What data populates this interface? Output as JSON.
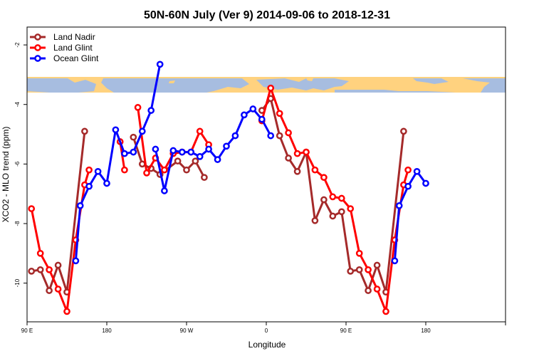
{
  "chart_data": {
    "type": "line",
    "title": "50N-60N July (Ver 9)   2014-09-06 to 2018-12-31",
    "xlabel": "Longitude",
    "ylabel": "XCO2 - MLO trend (ppm)",
    "xlim": [
      -90,
      180
    ],
    "ylim": [
      -11.3,
      -1.4
    ],
    "x_ticks": [
      {
        "value": -90,
        "label": "90 E"
      },
      {
        "value": -45,
        "label": "180"
      },
      {
        "value": 0,
        "label": "90 W"
      },
      {
        "value": 45,
        "label": "0"
      },
      {
        "value": 90,
        "label": "90 E"
      },
      {
        "value": 135,
        "label": "180"
      }
    ],
    "y_ticks": [
      -2,
      -4,
      -6,
      -8,
      -10
    ],
    "legend_position": "top-left",
    "series": [
      {
        "name": "Land Nadir",
        "color": "#A52A2A",
        "segments": [
          [
            [
              -87.5,
              -9.6
            ],
            [
              -82.5,
              -9.55
            ],
            [
              -77.5,
              -10.25
            ],
            [
              -72.5,
              -9.4
            ],
            [
              -67.5,
              -10.3
            ],
            [
              -57.5,
              -4.9
            ]
          ],
          [
            [
              -30,
              -5.1
            ],
            [
              -25,
              -6
            ],
            [
              -20,
              -6.15
            ],
            [
              -15,
              -6.35
            ],
            [
              -5,
              -5.9
            ],
            [
              0,
              -6.2
            ],
            [
              5,
              -5.9
            ],
            [
              10,
              -6.45
            ]
          ],
          [
            [
              42.5,
              -4.2
            ],
            [
              47.5,
              -3.8
            ],
            [
              52.5,
              -5.05
            ],
            [
              57.5,
              -5.8
            ],
            [
              62.5,
              -6.25
            ],
            [
              67.5,
              -5.6
            ],
            [
              72.5,
              -7.9
            ],
            [
              77.5,
              -7.2
            ],
            [
              82.5,
              -7.75
            ],
            [
              87.5,
              -7.6
            ],
            [
              92.5,
              -9.6
            ],
            [
              97.5,
              -9.55
            ],
            [
              102.5,
              -10.25
            ],
            [
              107.5,
              -9.4
            ],
            [
              112.5,
              -10.3
            ],
            [
              122.5,
              -4.9
            ]
          ]
        ]
      },
      {
        "name": "Land Glint",
        "color": "#FF0000",
        "segments": [
          [
            [
              -87.5,
              -7.5
            ],
            [
              -82.5,
              -9
            ],
            [
              -77.5,
              -9.55
            ],
            [
              -72.5,
              -10.2
            ],
            [
              -67.5,
              -10.95
            ],
            [
              -62.5,
              -8.55
            ],
            [
              -57.5,
              -6.7
            ],
            [
              -55,
              -6.2
            ]
          ],
          [
            [
              -37.5,
              -5.25
            ],
            [
              -35,
              -6.2
            ]
          ],
          [
            [
              -27.5,
              -4.1
            ],
            [
              -22.5,
              -6.3
            ],
            [
              -17.5,
              -5.8
            ],
            [
              -12.5,
              -6.2
            ],
            [
              -7.5,
              -5.65
            ],
            [
              -2.5,
              -5.6
            ],
            [
              2.5,
              -5.6
            ],
            [
              7.5,
              -4.9
            ],
            [
              12.5,
              -5.35
            ]
          ],
          [
            [
              42.5,
              -4.55
            ],
            [
              47.5,
              -3.45
            ],
            [
              52.5,
              -4.3
            ],
            [
              57.5,
              -4.95
            ],
            [
              62.5,
              -5.65
            ],
            [
              67.5,
              -5.6
            ],
            [
              72.5,
              -6.2
            ],
            [
              77.5,
              -6.45
            ],
            [
              82.5,
              -7.1
            ],
            [
              87.5,
              -7.15
            ],
            [
              92.5,
              -7.5
            ],
            [
              97.5,
              -9
            ],
            [
              102.5,
              -9.55
            ],
            [
              107.5,
              -10.2
            ],
            [
              112.5,
              -10.95
            ],
            [
              117.5,
              -8.55
            ],
            [
              122.5,
              -6.7
            ],
            [
              125,
              -6.2
            ]
          ]
        ]
      },
      {
        "name": "Ocean Glint",
        "color": "#0000FF",
        "segments": [
          [
            [
              -62.5,
              -9.25
            ],
            [
              -60,
              -7.4
            ],
            [
              -55,
              -6.75
            ],
            [
              -50,
              -6.25
            ],
            [
              -45,
              -6.65
            ],
            [
              -40,
              -4.85
            ],
            [
              -35,
              -5.65
            ],
            [
              -30,
              -5.6
            ],
            [
              -25,
              -4.9
            ],
            [
              -20,
              -4.2
            ],
            [
              -15,
              -2.65
            ]
          ],
          [
            [
              -17.5,
              -5.5
            ],
            [
              -12.5,
              -6.9
            ],
            [
              -7.5,
              -5.55
            ],
            [
              -2.5,
              -5.6
            ],
            [
              2.5,
              -5.6
            ],
            [
              7.5,
              -5.75
            ],
            [
              12.5,
              -5.5
            ],
            [
              17.5,
              -5.85
            ],
            [
              22.5,
              -5.4
            ],
            [
              27.5,
              -5.05
            ],
            [
              32.5,
              -4.35
            ],
            [
              37.5,
              -4.15
            ],
            [
              42.5,
              -4.5
            ],
            [
              47.5,
              -5.05
            ]
          ],
          [
            [
              117.5,
              -9.25
            ],
            [
              120,
              -7.4
            ],
            [
              125,
              -6.75
            ],
            [
              130,
              -6.25
            ],
            [
              135,
              -6.65
            ]
          ]
        ]
      }
    ]
  }
}
